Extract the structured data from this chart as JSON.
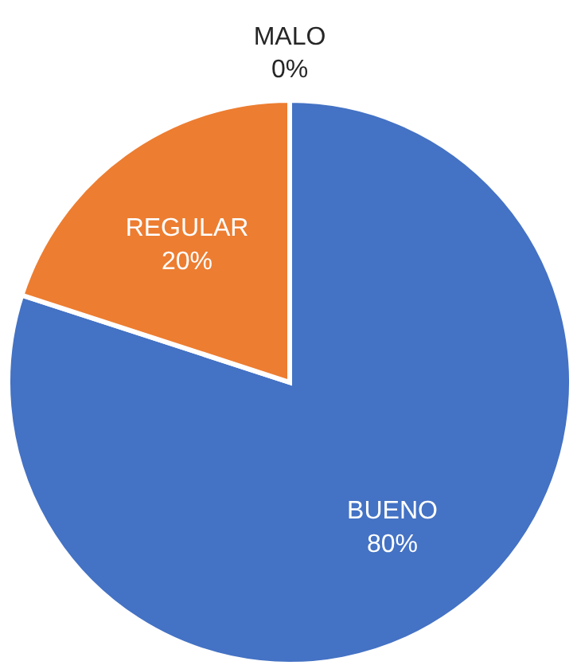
{
  "chart_data": {
    "type": "pie",
    "categories": [
      "BUENO",
      "REGULAR",
      "MALO"
    ],
    "values": [
      80,
      20,
      0
    ],
    "colors": [
      "#4472c4",
      "#ed7d31",
      "#a5a5a5"
    ],
    "value_labels": [
      "80%",
      "20%",
      "0%"
    ],
    "legend": false
  }
}
